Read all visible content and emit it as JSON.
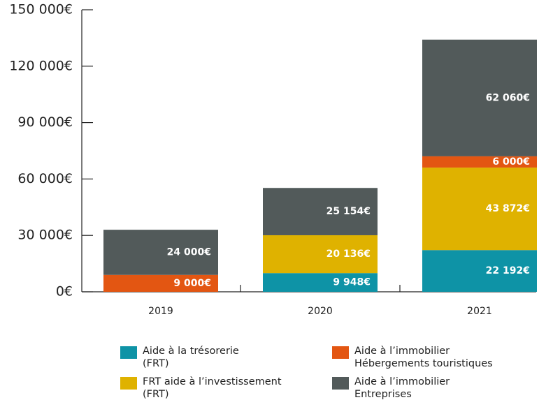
{
  "chart_data": {
    "type": "stacked-bar",
    "categories": [
      "2019",
      "2020",
      "2021"
    ],
    "series": [
      {
        "name": "Aide à la trésorerie\n(FRT)",
        "color": "#0e93a6",
        "values": [
          null,
          9948,
          22192
        ],
        "value_labels": [
          null,
          "9 948€",
          "22 192€"
        ]
      },
      {
        "name": "FRT aide à l’investissement\n(FRT)",
        "color": "#dfb200",
        "values": [
          null,
          20136,
          43872
        ],
        "value_labels": [
          null,
          "20 136€",
          "43 872€"
        ]
      },
      {
        "name": "Aide à l’immobilier\nHébergements touristiques",
        "color": "#e35612",
        "values": [
          9000,
          null,
          6000
        ],
        "value_labels": [
          "9 000€",
          null,
          "6 000€"
        ]
      },
      {
        "name": "Aide à l’immobilier\nEntreprises",
        "color": "#525a5a",
        "values": [
          24000,
          25154,
          62060
        ],
        "value_labels": [
          "24 000€",
          "25 154€",
          "62 060€"
        ]
      }
    ],
    "ylim": [
      0,
      150000
    ],
    "yticks": [
      {
        "value": 0,
        "label": "0€"
      },
      {
        "value": 30000,
        "label": "30 000€"
      },
      {
        "value": 60000,
        "label": "60 000€"
      },
      {
        "value": 90000,
        "label": "90 000€"
      },
      {
        "value": 120000,
        "label": "120 000€"
      },
      {
        "value": 150000,
        "label": "150 000€"
      }
    ],
    "grid": false,
    "legend": "bottom"
  }
}
